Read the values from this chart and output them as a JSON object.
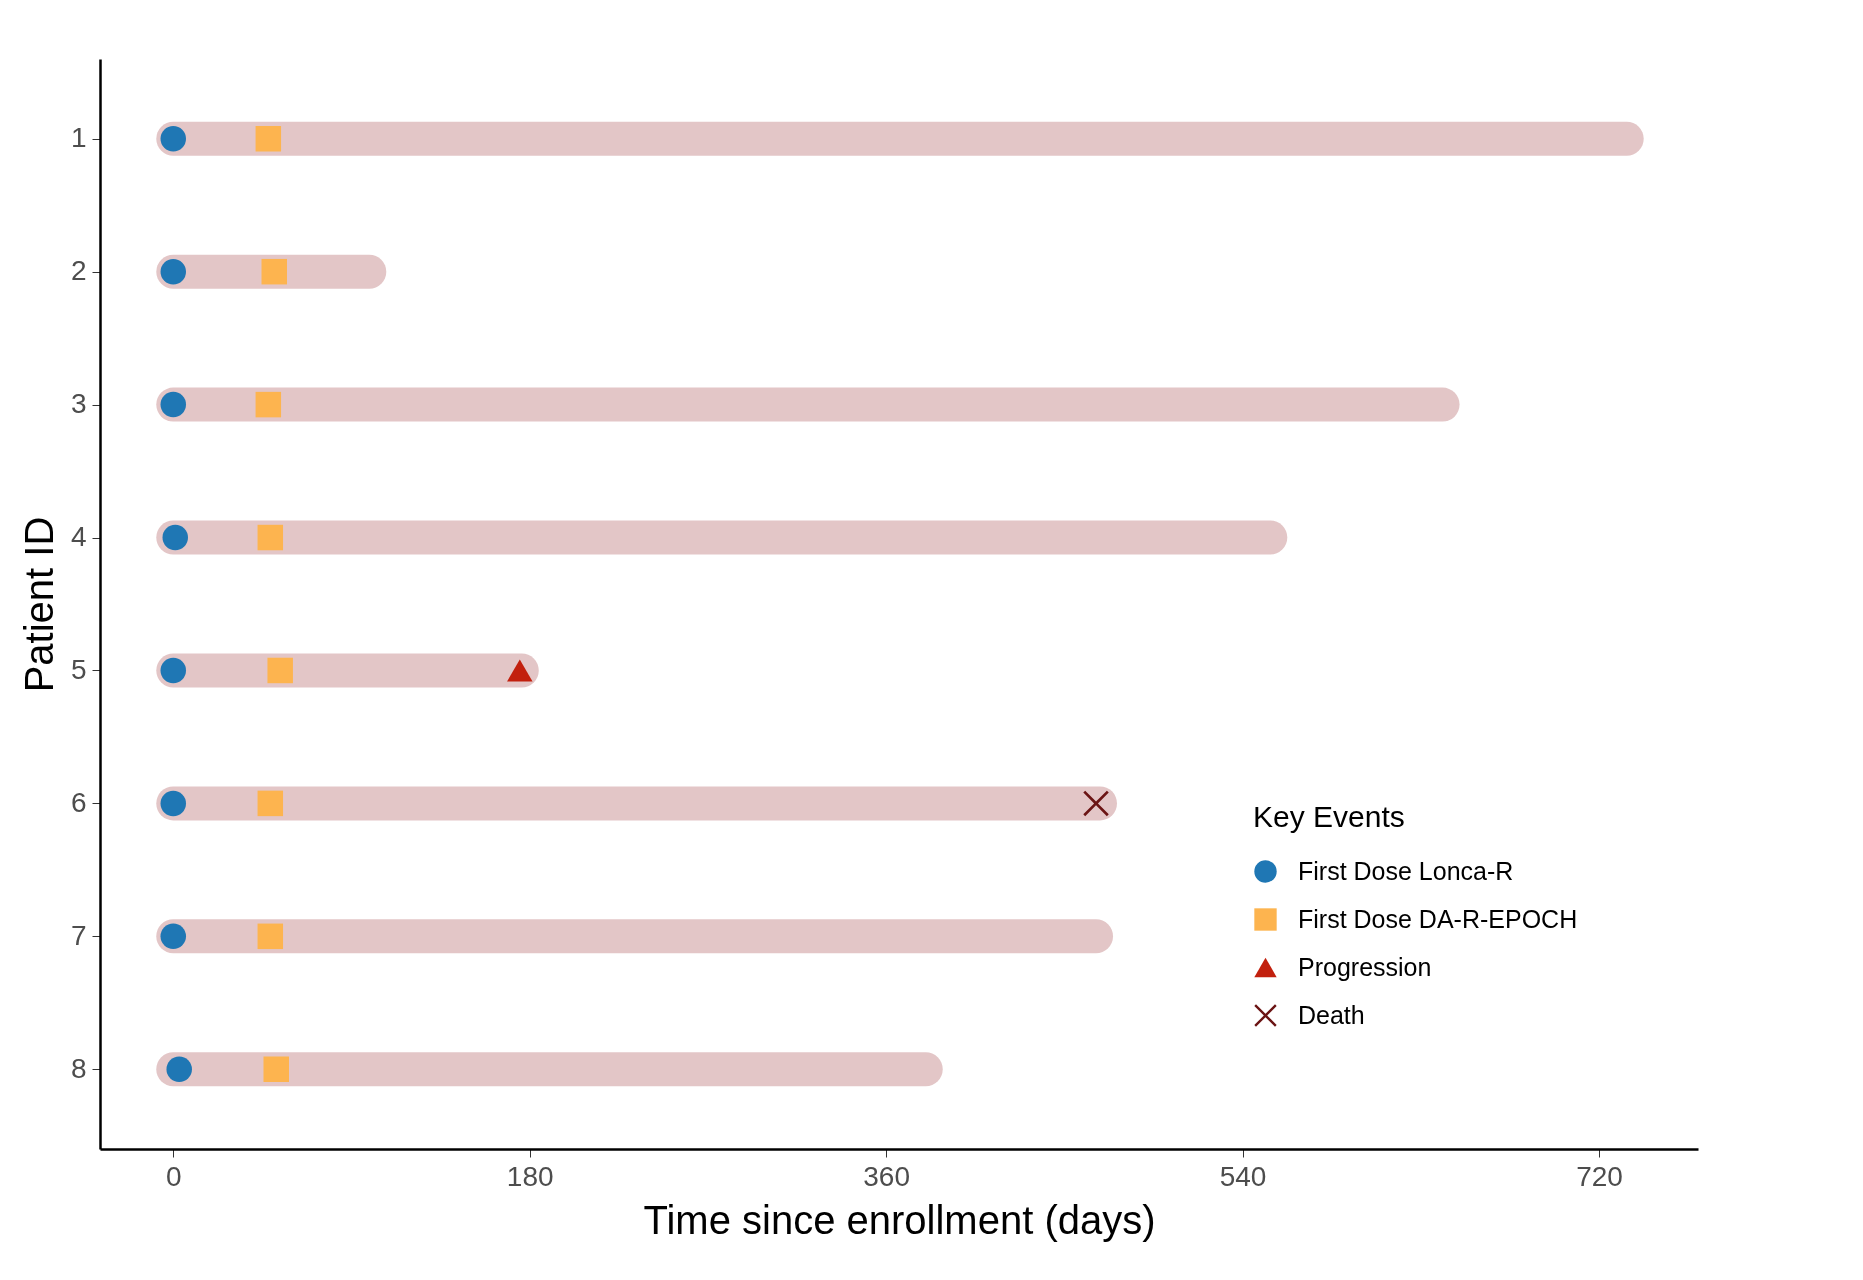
{
  "chart_data": {
    "type": "bar",
    "orientation": "horizontal",
    "xlabel": "Time since enrollment (days)",
    "ylabel": "Patient ID",
    "legend_title": "Key Events",
    "legend": "bottom right",
    "grid": false,
    "categories": [
      "1",
      "2",
      "3",
      "4",
      "5",
      "6",
      "7",
      "8"
    ],
    "xlim": [
      -37,
      770
    ],
    "xticks": [
      0,
      180,
      360,
      540,
      720
    ],
    "series": [
      {
        "color": "#e3c6c7",
        "values": [
          734,
          99,
          641,
          554,
          176,
          468,
          466,
          380
        ]
      },
      {
        "type": "scatter",
        "name": "First Dose Lonca-R",
        "marker": "circle",
        "color": "#1f77b4",
        "values": [
          0,
          0,
          0,
          1,
          0,
          0,
          0,
          3
        ]
      },
      {
        "type": "scatter",
        "name": "First Dose DA-R-EPOCH",
        "marker": "square",
        "color": "#fdb44f",
        "values": [
          48,
          51,
          48,
          49,
          54,
          49,
          49,
          52
        ]
      },
      {
        "type": "scatter",
        "name": "Progression",
        "marker": "triangle",
        "color": "#c2200e",
        "values": [
          null,
          null,
          null,
          null,
          175,
          null,
          null,
          null
        ]
      },
      {
        "type": "scatter",
        "name": "Death",
        "marker": "cross",
        "color": "#6b1414",
        "values": [
          null,
          null,
          null,
          null,
          null,
          466,
          null,
          null
        ]
      }
    ]
  }
}
